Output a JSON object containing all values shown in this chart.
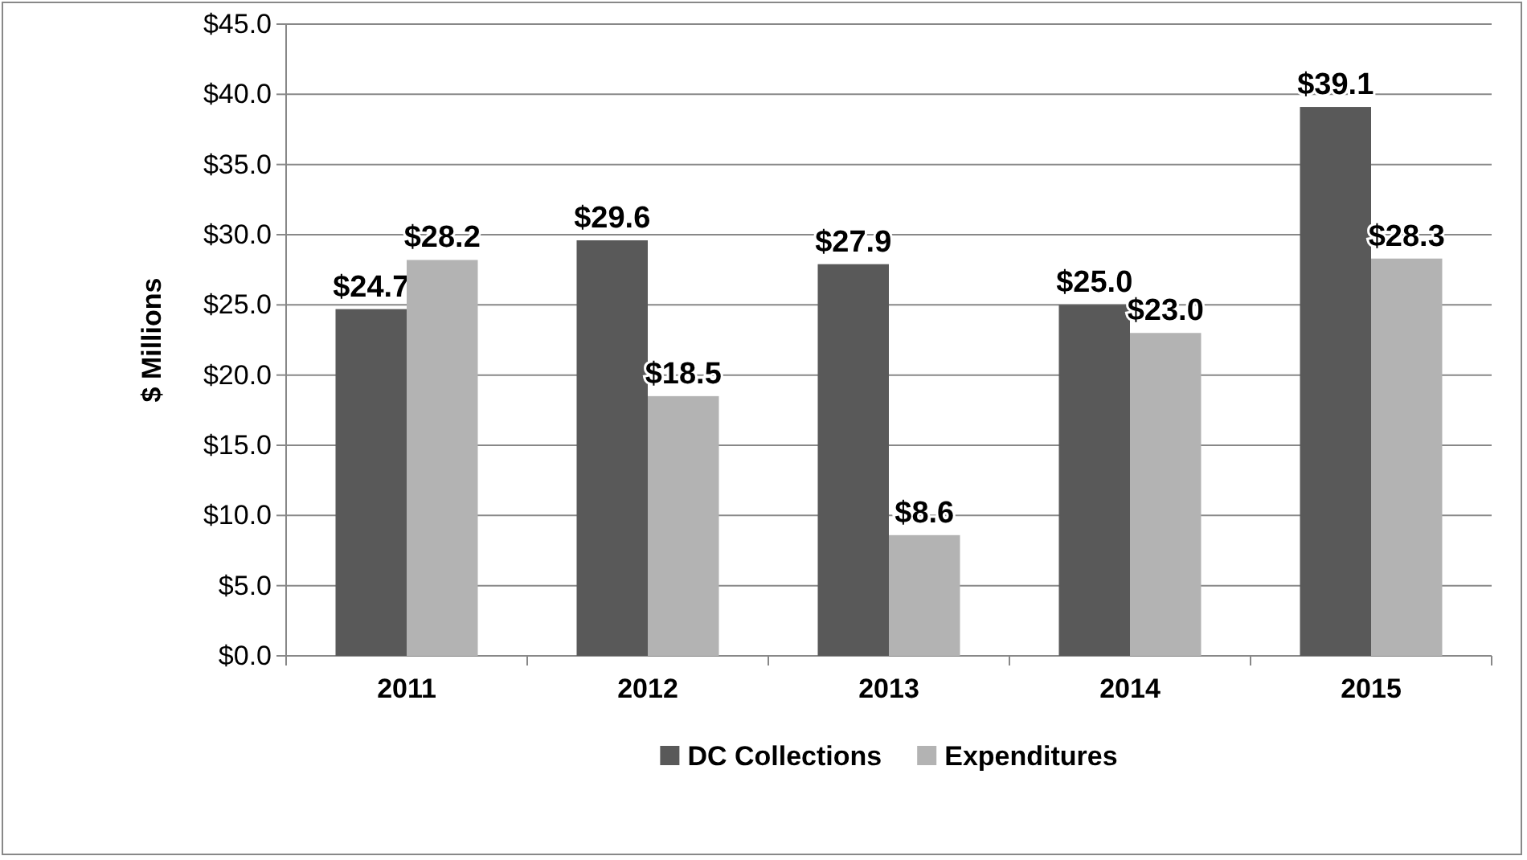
{
  "chart_data": {
    "type": "bar",
    "ylabel": "$ Millions",
    "categories": [
      "2011",
      "2012",
      "2013",
      "2014",
      "2015"
    ],
    "series": [
      {
        "name": "DC Collections",
        "color": "#595959",
        "values": [
          24.7,
          29.6,
          27.9,
          25.0,
          39.1
        ],
        "value_labels": [
          "$24.7",
          "$29.6",
          "$27.9",
          "$25.0",
          "$39.1"
        ]
      },
      {
        "name": "Expenditures",
        "color": "#b3b3b3",
        "values": [
          28.2,
          18.5,
          8.6,
          23.0,
          28.3
        ],
        "value_labels": [
          "$28.2",
          "$18.5",
          "$8.6",
          "$23.0",
          "$28.3"
        ]
      }
    ],
    "ylim": [
      0,
      45
    ],
    "yticks": [
      {
        "value": 0,
        "label": "$0.0"
      },
      {
        "value": 5,
        "label": "$5.0"
      },
      {
        "value": 10,
        "label": "$10.0"
      },
      {
        "value": 15,
        "label": "$15.0"
      },
      {
        "value": 20,
        "label": "$20.0"
      },
      {
        "value": 25,
        "label": "$25.0"
      },
      {
        "value": 30,
        "label": "$30.0"
      },
      {
        "value": 35,
        "label": "$35.0"
      },
      {
        "value": 40,
        "label": "$40.0"
      },
      {
        "value": 45,
        "label": "$45.0"
      }
    ],
    "grid": "y",
    "legend": "bottom"
  }
}
